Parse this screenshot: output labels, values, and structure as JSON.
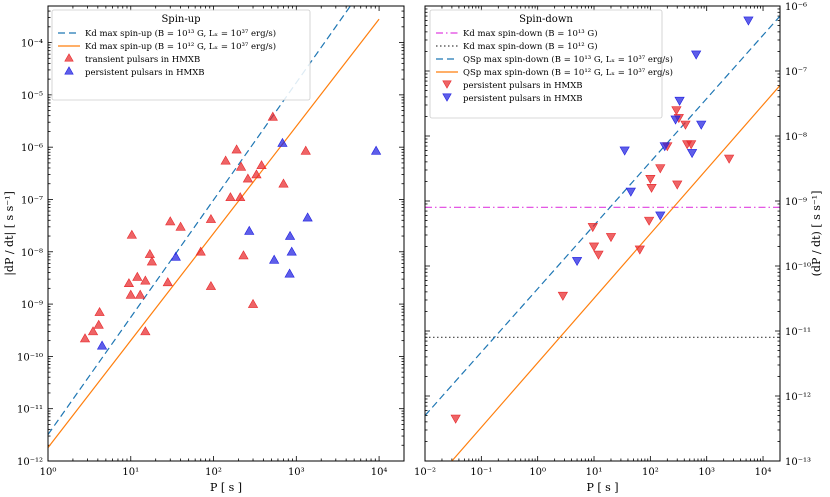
{
  "chart_data": [
    {
      "type": "scatter",
      "title": "Spin-up",
      "xlabel": "P [ s ]",
      "ylabel": "|dP / dt| [ s s⁻¹]",
      "xscale": "log",
      "yscale": "log",
      "xlim": [
        1,
        20000
      ],
      "ylim": [
        1e-12,
        0.0005
      ],
      "x_ticks": [
        "10⁰",
        "10¹",
        "10²",
        "10³",
        "10⁴"
      ],
      "y_ticks": [
        "10⁻¹²",
        "10⁻¹¹",
        "10⁻¹⁰",
        "10⁻⁹",
        "10⁻⁸",
        "10⁻⁷",
        "10⁻⁶",
        "10⁻⁵",
        "10⁻⁴"
      ],
      "legend_position": "top-left",
      "lines": [
        {
          "name": "Kd max spin-up (B = 10¹³ G, Lₓ = 10³⁷ erg/s)",
          "style": "dashed",
          "color": "#1f77b4",
          "points": [
            [
              1,
              3.2e-12
            ],
            [
              4500,
              0.0005
            ]
          ]
        },
        {
          "name": "Kd max spin-up (B = 10¹² G, Lₓ = 10³⁷ erg/s)",
          "style": "solid",
          "color": "#ff7f0e",
          "points": [
            [
              1,
              1.8e-12
            ],
            [
              10000,
              0.00028
            ]
          ]
        }
      ],
      "series": [
        {
          "name": "transient pulsars in HMXB",
          "marker": "triangle-up",
          "color": "#e8282b",
          "points": [
            [
              2.8,
              2.2e-10
            ],
            [
              3.5,
              3e-10
            ],
            [
              4.1,
              4e-10
            ],
            [
              4.2,
              7e-10
            ],
            [
              9.5,
              2.5e-09
            ],
            [
              10,
              1.5e-09
            ],
            [
              10.3,
              2.1e-08
            ],
            [
              12,
              3.3e-09
            ],
            [
              13,
              1.5e-09
            ],
            [
              15,
              3e-10
            ],
            [
              15,
              2.8e-09
            ],
            [
              17,
              9e-09
            ],
            [
              18,
              6.5e-09
            ],
            [
              28,
              2.6e-09
            ],
            [
              30,
              3.8e-08
            ],
            [
              40,
              3e-08
            ],
            [
              70,
              1e-08
            ],
            [
              93,
              4.2e-08
            ],
            [
              93,
              2.2e-09
            ],
            [
              140,
              5.5e-07
            ],
            [
              160,
              1.1e-07
            ],
            [
              190,
              9e-07
            ],
            [
              210,
              1.1e-07
            ],
            [
              215,
              4.2e-07
            ],
            [
              230,
              8.5e-09
            ],
            [
              260,
              2.5e-07
            ],
            [
              300,
              1e-09
            ],
            [
              330,
              3e-07
            ],
            [
              380,
              4.5e-07
            ],
            [
              520,
              3.8e-06
            ],
            [
              700,
              2e-07
            ],
            [
              1300,
              8.5e-07
            ]
          ]
        },
        {
          "name": "persistent pulsars in HMXB",
          "marker": "triangle-up",
          "color": "#2020e0",
          "points": [
            [
              4.5,
              1.6e-10
            ],
            [
              35,
              8e-09
            ],
            [
              270,
              2.5e-08
            ],
            [
              540,
              7e-09
            ],
            [
              680,
              1.2e-06
            ],
            [
              830,
              3.8e-09
            ],
            [
              840,
              2e-08
            ],
            [
              880,
              1e-08
            ],
            [
              1370,
              4.5e-08
            ],
            [
              9200,
              8.5e-07
            ]
          ]
        }
      ]
    },
    {
      "type": "scatter",
      "title": "Spin-down",
      "xlabel": "P [ s ]",
      "ylabel": "(dP / dt) [ s s⁻¹]",
      "xscale": "log",
      "yscale": "log",
      "xlim": [
        0.01,
        20000
      ],
      "ylim": [
        1e-13,
        1e-06
      ],
      "x_ticks": [
        "10⁻²",
        "10⁻¹",
        "10⁰",
        "10¹",
        "10²",
        "10³",
        "10⁴"
      ],
      "y_ticks": [
        "10⁻¹³",
        "10⁻¹²",
        "10⁻¹¹",
        "10⁻¹⁰",
        "10⁻⁹",
        "10⁻⁸",
        "10⁻⁷",
        "10⁻⁶"
      ],
      "legend_position": "top-center",
      "lines": [
        {
          "name": "Kd max spin-down (B = 10¹³ G)",
          "style": "dashdot",
          "color": "#e040e0",
          "points": [
            [
              0.01,
              8e-10
            ],
            [
              20000,
              8e-10
            ]
          ]
        },
        {
          "name": "Kd max spin-down (B = 10¹² G)",
          "style": "dotted",
          "color": "#404040",
          "points": [
            [
              0.01,
              8e-12
            ],
            [
              20000,
              8e-12
            ]
          ]
        },
        {
          "name": "QSp max spin-down (B = 10¹³ G, Lₓ = 10³⁷ erg/s)",
          "style": "dashed",
          "color": "#1f77b4",
          "points": [
            [
              0.01,
              5e-13
            ],
            [
              20000,
              7e-07
            ]
          ]
        },
        {
          "name": "QSp max spin-down (B = 10¹² G, Lₓ = 10³⁷ erg/s)",
          "style": "solid",
          "color": "#ff7f0e",
          "points": [
            [
              0.03,
              1e-13
            ],
            [
              20000,
              6e-08
            ]
          ]
        }
      ],
      "series": [
        {
          "name": "persistent pulsars in HMXB",
          "marker": "triangle-down",
          "color": "#e8282b",
          "points": [
            [
              0.035,
              4.5e-13
            ],
            [
              2.8,
              3.5e-11
            ],
            [
              9.5,
              4e-10
            ],
            [
              10,
              2e-10
            ],
            [
              12,
              1.5e-10
            ],
            [
              20,
              2.8e-10
            ],
            [
              65,
              1.8e-10
            ],
            [
              95,
              5e-10
            ],
            [
              100,
              2.2e-09
            ],
            [
              105,
              1.6e-09
            ],
            [
              150,
              3.2e-09
            ],
            [
              200,
              7e-09
            ],
            [
              290,
              2.5e-08
            ],
            [
              300,
              1.8e-09
            ],
            [
              320,
              1.9e-08
            ],
            [
              420,
              1.5e-08
            ],
            [
              450,
              7.5e-09
            ],
            [
              530,
              7.5e-09
            ],
            [
              2500,
              4.5e-09
            ]
          ]
        },
        {
          "name": "persistent pulsars in HMXB",
          "marker": "triangle-down",
          "color": "#2020e0",
          "points": [
            [
              5,
              1.2e-10
            ],
            [
              35,
              6e-09
            ],
            [
              45,
              1.4e-09
            ],
            [
              150,
              6e-10
            ],
            [
              180,
              7e-09
            ],
            [
              280,
              1.8e-08
            ],
            [
              330,
              3.5e-08
            ],
            [
              550,
              5.5e-09
            ],
            [
              650,
              1.8e-07
            ],
            [
              800,
              1.5e-08
            ],
            [
              5500,
              6e-07
            ]
          ]
        }
      ]
    }
  ]
}
